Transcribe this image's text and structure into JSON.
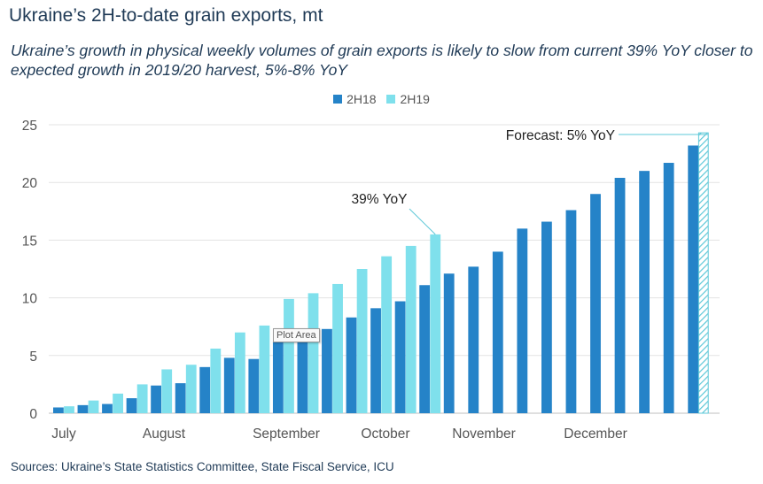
{
  "title": "Ukraine’s 2H-to-date grain exports, mt",
  "subtitle": "Ukraine’s growth in physical weekly volumes of grain exports is likely to slow from current 39% YoY closer to expected growth in 2019/20 harvest, 5%-8% YoY",
  "source": "Sources: Ukraine’s State Statistics Committee, State Fiscal Service, ICU",
  "tooltip": "Plot Area",
  "colors": {
    "2H18": "#2583c8",
    "2H19": "#7fe0ec",
    "forecast": "#5ec8d8",
    "text": "#1f3a56",
    "grid": "#e3e3e3"
  },
  "chart_data": {
    "type": "bar",
    "ylim": [
      0,
      25
    ],
    "yticks": [
      0,
      5,
      10,
      15,
      20,
      25
    ],
    "grid": true,
    "legend_position": "top-center",
    "month_labels": [
      "July",
      "August",
      "September",
      "October",
      "November",
      "December"
    ],
    "series": [
      {
        "name": "2H18",
        "values": [
          0.5,
          0.7,
          0.8,
          1.3,
          2.4,
          2.6,
          4.0,
          4.8,
          4.7,
          6.2,
          6.8,
          7.3,
          8.3,
          9.1,
          9.7,
          11.1,
          12.1,
          12.7,
          14.0,
          16.0,
          16.6,
          17.6,
          19.0,
          20.4,
          21.0,
          21.7,
          23.2
        ]
      },
      {
        "name": "2H19",
        "values": [
          0.6,
          1.1,
          1.7,
          2.5,
          3.8,
          4.2,
          5.6,
          7.0,
          7.6,
          9.9,
          10.4,
          11.2,
          12.5,
          13.6,
          14.5,
          15.5
        ]
      }
    ],
    "forecast_bar": {
      "value": 24.3
    },
    "annotations": [
      "39% YoY",
      "Forecast: 5% YoY"
    ]
  }
}
